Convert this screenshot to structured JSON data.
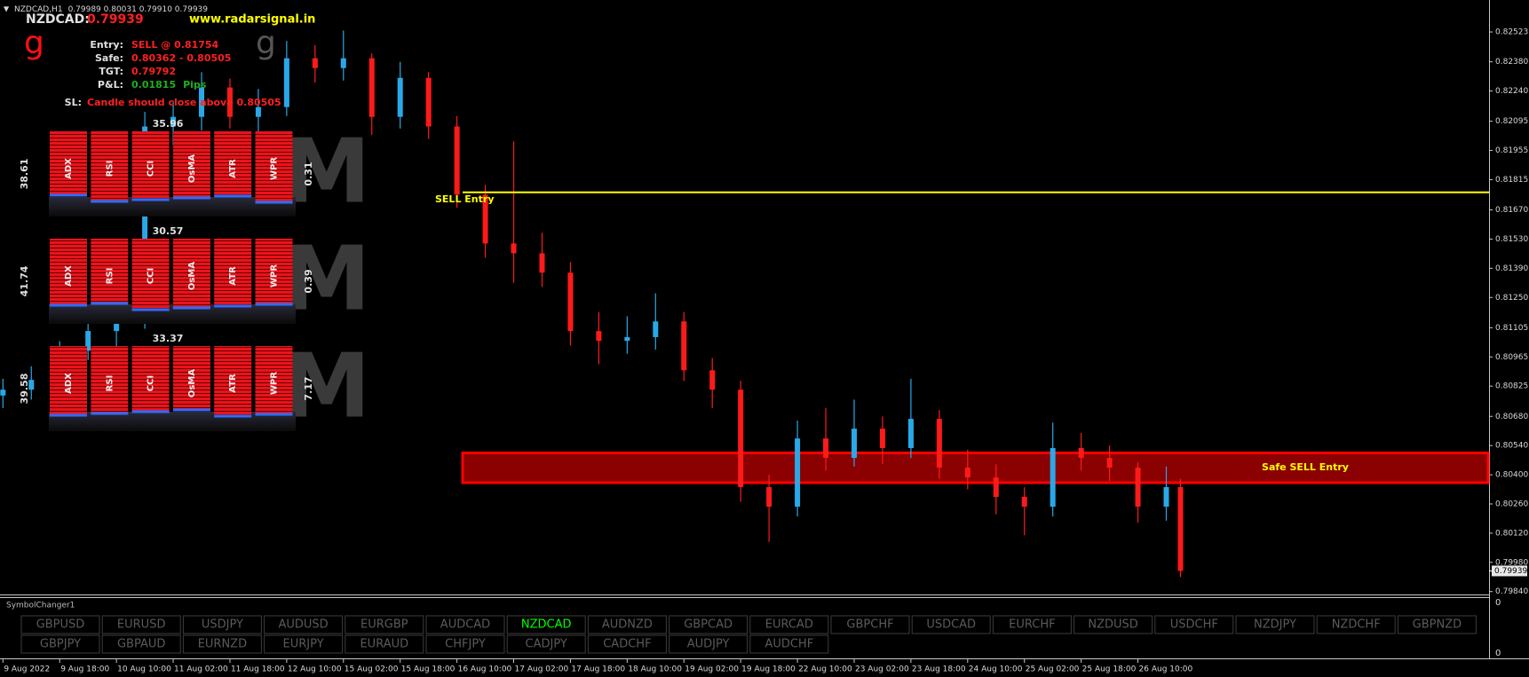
{
  "header": {
    "title": "NZDCAD,H1",
    "ohlc": "0.79989 0.80031 0.79910 0.79939"
  },
  "signal": {
    "symbol": "NZDCAD:",
    "price": "0.79939",
    "website": "www.radarsignal.in",
    "logo": "g",
    "rows": [
      {
        "label": "Entry:",
        "value": "SELL @ 0.81754",
        "color": "#ff2020"
      },
      {
        "label": "Safe:",
        "value": "0.80362 - 0.80505",
        "color": "#ff2020"
      },
      {
        "label": "TGT:",
        "value": "0.79792",
        "color": "#ff2020"
      },
      {
        "label": "P&L:",
        "value": "0.01815",
        "unit": "Pips",
        "color": "#1fb01f"
      }
    ],
    "sl_label": "SL:",
    "sl_text": "Candle should close above 0.80505"
  },
  "indicators": {
    "labels": [
      "ADX",
      "RSI",
      "CCI",
      "OsMA",
      "ATR",
      "WPR"
    ],
    "watermark": "M",
    "blocks": [
      {
        "top": "35.96",
        "left": "38.61",
        "right": "0.31"
      },
      {
        "top": "30.57",
        "left": "41.74",
        "right": "0.39"
      },
      {
        "top": "33.37",
        "left": "39.58",
        "right": "7.17"
      }
    ]
  },
  "chart_data": {
    "type": "candlestick",
    "x": [
      0,
      8,
      16,
      24,
      32,
      40,
      48,
      56,
      64,
      72,
      80,
      88,
      96,
      104,
      112,
      120,
      128,
      136,
      144,
      152,
      160,
      168,
      176,
      184,
      192,
      200,
      208,
      216,
      224,
      232,
      240,
      248,
      256,
      264,
      272,
      280,
      288,
      296,
      304,
      312,
      320,
      328,
      332
    ],
    "open": [
      0.8078,
      0.80808,
      0.80855,
      0.80995,
      0.81089,
      0.81135,
      0.8207,
      0.82116,
      0.82257,
      0.82116,
      0.82163,
      0.82397,
      0.8235,
      0.82397,
      0.82116,
      0.82303,
      0.8207,
      0.81743,
      0.81509,
      0.81462,
      0.81369,
      0.81089,
      0.81042,
      0.8106,
      0.81135,
      0.80901,
      0.80808,
      0.80341,
      0.80247,
      0.80574,
      0.80481,
      0.80621,
      0.80528,
      0.80668,
      0.80434,
      0.80387,
      0.80294,
      0.80247,
      0.80528,
      0.80481,
      0.80434,
      0.80247,
      0.80341
    ],
    "high": [
      0.8086,
      0.8092,
      0.8104,
      0.8115,
      0.8121,
      0.8214,
      0.8219,
      0.8233,
      0.823,
      0.8225,
      0.8248,
      0.8246,
      0.8253,
      0.8242,
      0.8238,
      0.8233,
      0.8212,
      0.8179,
      0.81999,
      0.8156,
      0.8142,
      0.8118,
      0.8116,
      0.8127,
      0.8118,
      0.8096,
      0.8085,
      0.804,
      0.8066,
      0.8072,
      0.8076,
      0.8068,
      0.8086,
      0.8071,
      0.8052,
      0.8045,
      0.8034,
      0.8065,
      0.806,
      0.8054,
      0.8046,
      0.8044,
      0.8038
    ],
    "low": [
      0.8072,
      0.8076,
      0.8082,
      0.8095,
      0.8101,
      0.811,
      0.8198,
      0.8205,
      0.8206,
      0.8204,
      0.8212,
      0.8228,
      0.8229,
      0.8203,
      0.8206,
      0.8201,
      0.8168,
      0.8144,
      0.8132,
      0.813,
      0.8102,
      0.8093,
      0.8098,
      0.81,
      0.8085,
      0.8072,
      0.8027,
      0.80078,
      0.802,
      0.8042,
      0.8044,
      0.8045,
      0.8048,
      0.8038,
      0.8033,
      0.8021,
      0.8011,
      0.802,
      0.8042,
      0.8037,
      0.8017,
      0.8018,
      0.7991
    ],
    "close": [
      0.80808,
      0.80855,
      0.80995,
      0.81089,
      0.81135,
      0.8207,
      0.82116,
      0.82257,
      0.82116,
      0.82163,
      0.82397,
      0.8235,
      0.82397,
      0.82116,
      0.82303,
      0.8207,
      0.81743,
      0.81509,
      0.81462,
      0.81369,
      0.81089,
      0.81042,
      0.8106,
      0.81135,
      0.80901,
      0.80808,
      0.80341,
      0.80247,
      0.80574,
      0.80481,
      0.80621,
      0.80528,
      0.80668,
      0.80434,
      0.80387,
      0.80294,
      0.80247,
      0.80528,
      0.80481,
      0.80434,
      0.80247,
      0.80341,
      0.79939
    ],
    "up_color": "#29a8e8",
    "down_color": "#ff1a1a",
    "xlim": [
      -0.83,
      419
    ],
    "ylim": [
      0.79826,
      0.82621
    ],
    "yticks": [
      0.82523,
      {
        "value": 0.8238,
        "label": "0.82380"
      },
      {
        "value": 0.8224,
        "label": "0.82240"
      },
      0.82095,
      0.81955,
      0.81815,
      {
        "value": 0.8167,
        "label": "0.81670"
      },
      {
        "value": 0.8153,
        "label": "0.81530"
      },
      {
        "value": 0.8139,
        "label": "0.81390"
      },
      {
        "value": 0.8125,
        "label": "0.81250"
      },
      0.81105,
      0.80965,
      0.80825,
      {
        "value": 0.8068,
        "label": "0.80680"
      },
      {
        "value": 0.8054,
        "label": "0.80540"
      },
      {
        "value": 0.804,
        "label": "0.80400"
      },
      {
        "value": 0.8026,
        "label": "0.80260"
      },
      {
        "value": 0.8012,
        "label": "0.80120"
      },
      {
        "value": 0.7998,
        "label": "0.79980"
      },
      {
        "value": 0.7984,
        "label": "0.79840"
      }
    ],
    "xticks": [
      {
        "value": 0,
        "label": "9 Aug 2022"
      },
      {
        "value": 16,
        "label": "9 Aug 18:00"
      },
      {
        "value": 32,
        "label": "10 Aug 10:00"
      },
      {
        "value": 48,
        "label": "11 Aug 02:00"
      },
      {
        "value": 64,
        "label": "11 Aug 18:00"
      },
      {
        "value": 80,
        "label": "12 Aug 10:00"
      },
      {
        "value": 96,
        "label": "15 Aug 02:00"
      },
      {
        "value": 112,
        "label": "15 Aug 18:00"
      },
      {
        "value": 128,
        "label": "16 Aug 10:00"
      },
      {
        "value": 144,
        "label": "17 Aug 02:00"
      },
      {
        "value": 160,
        "label": "17 Aug 18:00"
      },
      {
        "value": 176,
        "label": "18 Aug 10:00"
      },
      {
        "value": 192,
        "label": "19 Aug 02:00"
      },
      {
        "value": 208,
        "label": "19 Aug 18:00"
      },
      {
        "value": 224,
        "label": "22 Aug 10:00"
      },
      {
        "value": 240,
        "label": "23 Aug 02:00"
      },
      {
        "value": 256,
        "label": "23 Aug 18:00"
      },
      {
        "value": 272,
        "label": "24 Aug 10:00"
      },
      {
        "value": 288,
        "label": "25 Aug 02:00"
      },
      {
        "value": 304,
        "label": "25 Aug 18:00"
      },
      {
        "value": 320,
        "label": "26 Aug 10:00"
      }
    ],
    "current_price": 0.79939,
    "entry": {
      "value": 0.81754,
      "label": "SELL Entry",
      "color": "#ffff00"
    },
    "zone": {
      "low": 0.80362,
      "high": 0.80505,
      "label": "Safe SELL Entry",
      "fill": "#8b0000",
      "stroke": "#ff0000"
    }
  },
  "symbol_changer": {
    "title": "SymbolChanger1",
    "symbols": [
      "GBPUSD",
      "EURUSD",
      "USDJPY",
      "AUDUSD",
      "EURGBP",
      "AUDCAD",
      "NZDCAD",
      "AUDNZD",
      "GBPCAD",
      "EURCAD",
      "GBPCHF",
      "USDCAD",
      "EURCHF",
      "NZDUSD",
      "USDCHF",
      "NZDJPY",
      "NZDCHF",
      "GBPNZD",
      "GBPJPY",
      "GBPAUD",
      "EURNZD",
      "EURJPY",
      "EURAUD",
      "CHFJPY",
      "CADJPY",
      "CADCHF",
      "AUDJPY",
      "AUDCHF"
    ],
    "active": "NZDCAD",
    "axis_labels": [
      "0",
      "0"
    ]
  }
}
